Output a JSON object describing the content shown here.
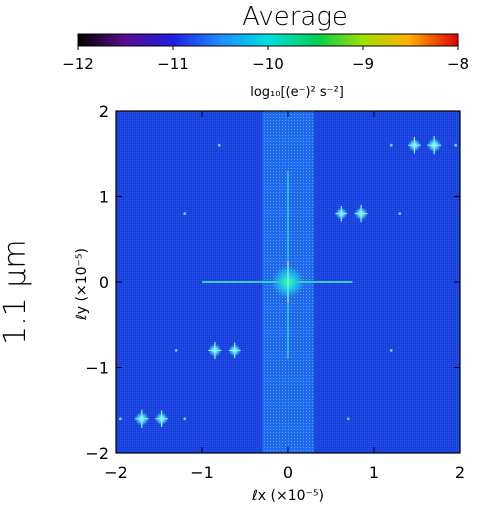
{
  "chart_data": {
    "type": "heatmap",
    "title": "Average",
    "side_label": "1.1 μm",
    "colorbar": {
      "label": "log₁₀[(e⁻)² s⁻²]",
      "range": [
        -12,
        -8
      ],
      "ticks": [
        "−12",
        "−11",
        "−10",
        "−9",
        "−8"
      ],
      "colormap": "rainbow"
    },
    "xlabel": "ℓx (×10⁻⁵)",
    "ylabel": "ℓy (×10⁻⁵)",
    "xlim": [
      -2,
      2
    ],
    "ylim": [
      -2,
      2
    ],
    "xticks": [
      "−2",
      "−1",
      "0",
      "1",
      "2"
    ],
    "yticks": [
      "−2",
      "−1",
      "0",
      "1",
      "2"
    ],
    "background_log_value": -11.1,
    "central_band": {
      "x_range": [
        -0.3,
        0.3
      ],
      "log_value": -10.8
    },
    "features": [
      {
        "x": 0.0,
        "y": 0.0,
        "log_value": -9.8
      },
      {
        "x": 1.7,
        "y": 1.6,
        "log_value": -10.0
      },
      {
        "x": 1.47,
        "y": 1.6,
        "log_value": -10.3
      },
      {
        "x": 0.85,
        "y": 0.8,
        "log_value": -10.2
      },
      {
        "x": 0.62,
        "y": 0.8,
        "log_value": -10.5
      },
      {
        "x": -0.85,
        "y": -0.8,
        "log_value": -10.2
      },
      {
        "x": -0.62,
        "y": -0.8,
        "log_value": -10.5
      },
      {
        "x": -1.7,
        "y": -1.6,
        "log_value": -10.0
      },
      {
        "x": -1.47,
        "y": -1.6,
        "log_value": -10.3
      }
    ],
    "grid": false
  }
}
